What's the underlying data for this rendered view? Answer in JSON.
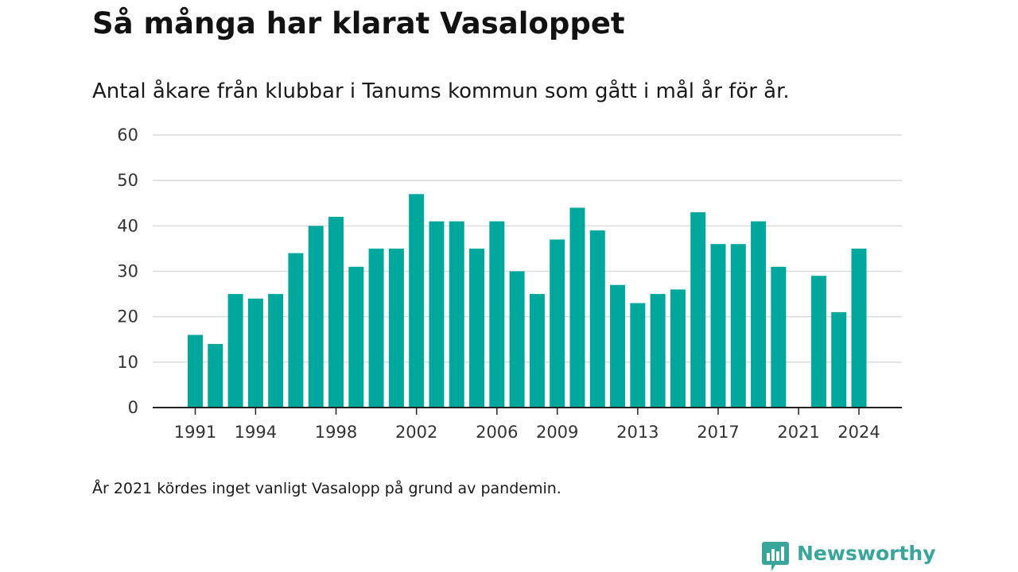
{
  "title": "Så många har klarat Vasaloppet",
  "subtitle": "Antal åkare från klubbar i Tanums kommun som gått i mål år för år.",
  "footnote": "År 2021 kördes inget vanligt Vasalopp på grund av pandemin.",
  "brand": {
    "name": "Newsworthy",
    "icon": "newsworthy-logo-icon",
    "color": "#3aa59b"
  },
  "chart_data": {
    "type": "bar",
    "title": "Så många har klarat Vasaloppet",
    "subtitle": "Antal åkare från klubbar i Tanums kommun som gått i mål år för år.",
    "xlabel": "",
    "ylabel": "",
    "categories": [
      1991,
      1992,
      1993,
      1994,
      1995,
      1996,
      1997,
      1998,
      1999,
      2000,
      2001,
      2002,
      2003,
      2004,
      2005,
      2006,
      2007,
      2008,
      2009,
      2010,
      2011,
      2012,
      2013,
      2014,
      2015,
      2016,
      2017,
      2018,
      2019,
      2020,
      2021,
      2022,
      2023,
      2024
    ],
    "values": [
      16,
      14,
      25,
      24,
      25,
      34,
      40,
      42,
      31,
      35,
      35,
      47,
      41,
      41,
      35,
      41,
      30,
      25,
      37,
      44,
      39,
      27,
      23,
      25,
      26,
      43,
      36,
      36,
      41,
      31,
      null,
      29,
      21,
      35
    ],
    "x_tick_labels": [
      "1991",
      "1994",
      "1998",
      "2002",
      "2006",
      "2009",
      "2013",
      "2017",
      "2021",
      "2024"
    ],
    "y_ticks": [
      0,
      10,
      20,
      30,
      40,
      50,
      60
    ],
    "ylim": [
      0,
      60
    ],
    "grid": true,
    "bar_color": "#00a79d",
    "legend": false
  }
}
